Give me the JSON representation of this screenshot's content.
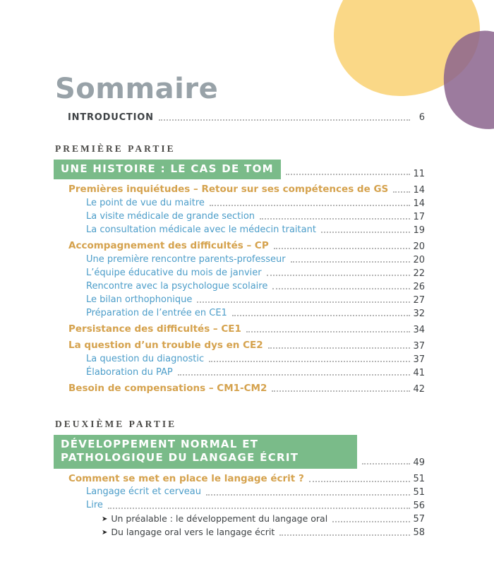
{
  "page": {
    "title": "Sommaire"
  },
  "decor": {
    "yellow_blob_color": "#FAD887",
    "purple_blob_color": "#8B648D",
    "highlight_green": "#7ABB89",
    "accent_orange": "#D5A24D",
    "accent_blue": "#4C9DC9",
    "title_gray": "#98A2A8"
  },
  "toc": {
    "entries": [
      {
        "level": "intro",
        "label": "INTRODUCTION",
        "page": "6"
      },
      {
        "level": "part-label",
        "label": "PREMIÈRE PARTIE"
      },
      {
        "level": "part-title",
        "label": "UNE HISTOIRE : LE CAS DE TOM",
        "page": "11"
      },
      {
        "level": "h1",
        "label": "Premières inquiétudes – Retour sur ses compétences de GS",
        "page": "14"
      },
      {
        "level": "h2",
        "label": "Le point de vue du maitre",
        "page": "14"
      },
      {
        "level": "h2",
        "label": "La visite médicale de grande section",
        "page": "17"
      },
      {
        "level": "h2",
        "label": "La consultation médicale avec le médecin traitant",
        "page": "19"
      },
      {
        "level": "h1",
        "label": "Accompagnement des difficultés – CP",
        "page": "20"
      },
      {
        "level": "h2",
        "label": "Une première rencontre parents-professeur",
        "page": "20"
      },
      {
        "level": "h2",
        "label": "L’équipe éducative du mois de janvier",
        "page": "22"
      },
      {
        "level": "h2",
        "label": "Rencontre avec la psychologue scolaire",
        "page": "26"
      },
      {
        "level": "h2",
        "label": "Le bilan orthophonique",
        "page": "27"
      },
      {
        "level": "h2",
        "label": "Préparation de l’entrée en CE1",
        "page": "32"
      },
      {
        "level": "h1",
        "label": "Persistance des difficultés – CE1",
        "page": "34"
      },
      {
        "level": "h1",
        "label": "La question d’un trouble dys en CE2",
        "page": "37"
      },
      {
        "level": "h2",
        "label": "La question du diagnostic",
        "page": "37"
      },
      {
        "level": "h2",
        "label": "Élaboration du PAP",
        "page": "41"
      },
      {
        "level": "h1",
        "label": "Besoin de compensations – CM1-CM2",
        "page": "42"
      },
      {
        "level": "part-label",
        "label": "DEUXIÈME PARTIE"
      },
      {
        "level": "part-title",
        "label": "DÉVELOPPEMENT NORMAL ET PATHOLOGIQUE DU LANGAGE ÉCRIT",
        "page": "49"
      },
      {
        "level": "h1",
        "label": "Comment se met en place le langage écrit ?",
        "page": "51"
      },
      {
        "level": "h2",
        "label": "Langage écrit et cerveau",
        "page": "51"
      },
      {
        "level": "h2",
        "label": "Lire",
        "page": "56"
      },
      {
        "level": "h3",
        "bullet": "➤",
        "label": "Un préalable : le développement du langage oral",
        "page": "57"
      },
      {
        "level": "h3",
        "bullet": "➤",
        "label": "Du langage oral vers le langage écrit",
        "page": "58"
      }
    ]
  }
}
